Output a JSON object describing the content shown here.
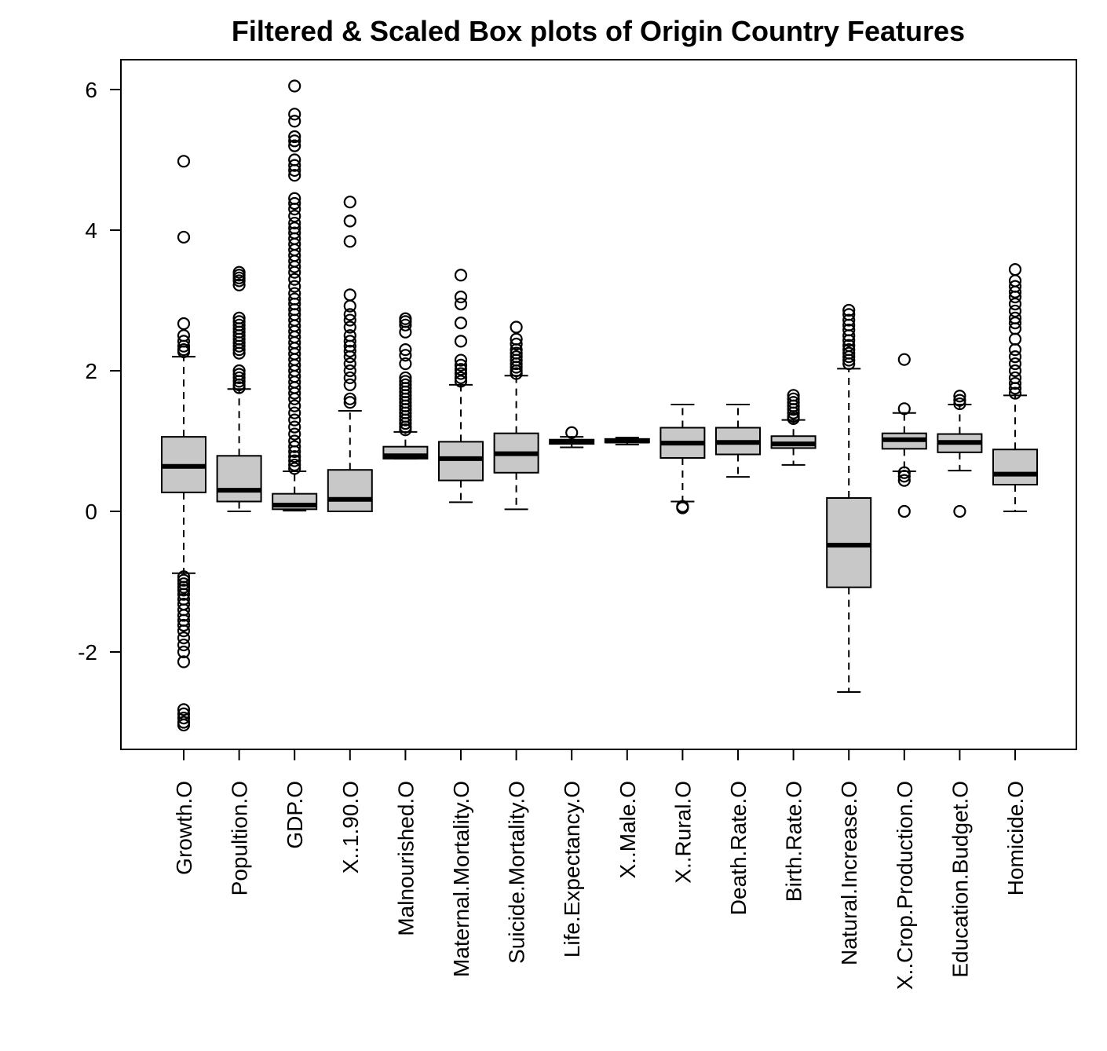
{
  "chart_data": {
    "type": "box",
    "title": "Filtered & Scaled Box plots of Origin Country Features",
    "xlabel": "",
    "ylabel": "",
    "ylim": [
      -3.4,
      6.4
    ],
    "yticks": [
      -2,
      0,
      2,
      4,
      6
    ],
    "ytick_labels": [
      "-2",
      "0",
      "2",
      "4",
      "6"
    ],
    "grid": false,
    "legend": "none",
    "colors": {
      "box_fill": "#c8c8c8",
      "stroke": "#000000",
      "background": "#ffffff"
    },
    "categories": [
      "Growth.O",
      "Popultion.O",
      "GDP.O",
      "X..1.90.O",
      "Malnourished.O",
      "Maternal.Mortality.O",
      "Suicide.Mortality.O",
      "Life.Expectancy.O",
      "X..Male.O",
      "X..Rural.O",
      "Death.Rate.O",
      "Birth.Rate.O",
      "Natural.Increase.O",
      "X..Crop.Production.O",
      "Education.Budget.O",
      "Homicide.O"
    ],
    "boxes": [
      {
        "whisker_low": -0.88,
        "q1": 0.27,
        "median": 0.64,
        "q3": 1.06,
        "whisker_high": 2.2,
        "outliers": [
          4.98,
          3.9,
          2.67,
          2.5,
          2.42,
          2.35,
          2.3,
          2.27,
          -0.93,
          -0.98,
          -1.03,
          -1.08,
          -1.12,
          -1.18,
          -1.25,
          -1.32,
          -1.4,
          -1.48,
          -1.55,
          -1.62,
          -1.7,
          -1.8,
          -1.9,
          -2.0,
          -2.14,
          -2.82,
          -2.88,
          -2.94,
          -3.0,
          -3.04
        ]
      },
      {
        "whisker_low": 0.0,
        "q1": 0.14,
        "median": 0.3,
        "q3": 0.79,
        "whisker_high": 1.74,
        "outliers": [
          3.4,
          3.36,
          3.32,
          3.28,
          3.22,
          2.75,
          2.7,
          2.65,
          2.6,
          2.55,
          2.5,
          2.45,
          2.4,
          2.35,
          2.3,
          2.25,
          2.0,
          1.95,
          1.9,
          1.85,
          1.8,
          1.76
        ]
      },
      {
        "whisker_low": 0.01,
        "q1": 0.03,
        "median": 0.09,
        "q3": 0.25,
        "whisker_high": 0.57,
        "outliers": [
          6.05,
          5.65,
          5.55,
          5.33,
          5.27,
          5.2,
          5.0,
          4.92,
          4.85,
          4.78,
          4.45,
          4.38,
          4.3,
          4.2,
          4.1,
          4.03,
          3.96,
          3.88,
          3.8,
          3.72,
          3.64,
          3.56,
          3.48,
          3.4,
          3.3,
          3.2,
          3.1,
          3.02,
          2.95,
          2.87,
          2.8,
          2.72,
          2.64,
          2.56,
          2.48,
          2.4,
          2.32,
          2.24,
          2.16,
          2.08,
          2.0,
          1.92,
          1.84,
          1.76,
          1.68,
          1.6,
          1.5,
          1.4,
          1.3,
          1.2,
          1.1,
          1.0,
          0.92,
          0.85,
          0.78,
          0.72,
          0.66,
          0.61
        ]
      },
      {
        "whisker_low": 0.0,
        "q1": 0.0,
        "median": 0.17,
        "q3": 0.59,
        "whisker_high": 1.43,
        "outliers": [
          4.4,
          4.13,
          3.84,
          3.08,
          2.92,
          2.8,
          2.72,
          2.62,
          2.5,
          2.42,
          2.35,
          2.28,
          2.2,
          2.1,
          2.0,
          1.9,
          1.8,
          1.6,
          1.55
        ]
      },
      {
        "whisker_low": 0.75,
        "q1": 0.75,
        "median": 0.79,
        "q3": 0.92,
        "whisker_high": 1.13,
        "outliers": [
          2.74,
          2.7,
          2.65,
          2.55,
          2.3,
          2.22,
          2.1,
          1.9,
          1.85,
          1.8,
          1.75,
          1.7,
          1.65,
          1.6,
          1.55,
          1.5,
          1.45,
          1.4,
          1.35,
          1.3,
          1.25,
          1.2,
          1.16
        ]
      },
      {
        "whisker_low": 0.13,
        "q1": 0.44,
        "median": 0.75,
        "q3": 0.99,
        "whisker_high": 1.8,
        "outliers": [
          3.36,
          3.05,
          2.95,
          2.68,
          2.42,
          2.15,
          2.08,
          2.02,
          1.96,
          1.9,
          1.85
        ]
      },
      {
        "whisker_low": 0.03,
        "q1": 0.55,
        "median": 0.82,
        "q3": 1.11,
        "whisker_high": 1.93,
        "outliers": [
          2.62,
          2.45,
          2.38,
          2.3,
          2.25,
          2.2,
          2.15,
          2.1,
          2.05,
          2.0,
          1.96
        ]
      },
      {
        "whisker_low": 0.91,
        "q1": 0.96,
        "median": 0.99,
        "q3": 1.02,
        "whisker_high": 1.06,
        "outliers": [
          1.12
        ]
      },
      {
        "whisker_low": 0.95,
        "q1": 0.98,
        "median": 1.0,
        "q3": 1.03,
        "whisker_high": 1.05,
        "outliers": []
      },
      {
        "whisker_low": 0.14,
        "q1": 0.76,
        "median": 0.97,
        "q3": 1.19,
        "whisker_high": 1.52,
        "outliers": [
          0.07,
          0.05
        ]
      },
      {
        "whisker_low": 0.49,
        "q1": 0.81,
        "median": 0.98,
        "q3": 1.19,
        "whisker_high": 1.52,
        "outliers": []
      },
      {
        "whisker_low": 0.66,
        "q1": 0.9,
        "median": 0.96,
        "q3": 1.07,
        "whisker_high": 1.3,
        "outliers": [
          1.65,
          1.6,
          1.55,
          1.5,
          1.45,
          1.4,
          1.35,
          1.32
        ]
      },
      {
        "whisker_low": -2.57,
        "q1": -1.08,
        "median": -0.48,
        "q3": 0.19,
        "whisker_high": 2.03,
        "outliers": [
          2.86,
          2.8,
          2.72,
          2.65,
          2.58,
          2.5,
          2.43,
          2.36,
          2.3,
          2.25,
          2.2,
          2.15,
          2.1
        ]
      },
      {
        "whisker_low": 0.57,
        "q1": 0.89,
        "median": 1.02,
        "q3": 1.11,
        "whisker_high": 1.4,
        "outliers": [
          2.16,
          1.46,
          0.55,
          0.5,
          0.44,
          0.0
        ]
      },
      {
        "whisker_low": 0.58,
        "q1": 0.84,
        "median": 0.98,
        "q3": 1.1,
        "whisker_high": 1.52,
        "outliers": [
          1.64,
          1.58,
          1.53,
          0.0
        ]
      },
      {
        "whisker_low": 0.0,
        "q1": 0.38,
        "median": 0.53,
        "q3": 0.88,
        "whisker_high": 1.65,
        "outliers": [
          3.44,
          3.28,
          3.2,
          3.12,
          3.05,
          2.95,
          2.85,
          2.75,
          2.68,
          2.6,
          2.45,
          2.3,
          2.2,
          2.1,
          2.0,
          1.9,
          1.82,
          1.75,
          1.68
        ]
      }
    ]
  }
}
